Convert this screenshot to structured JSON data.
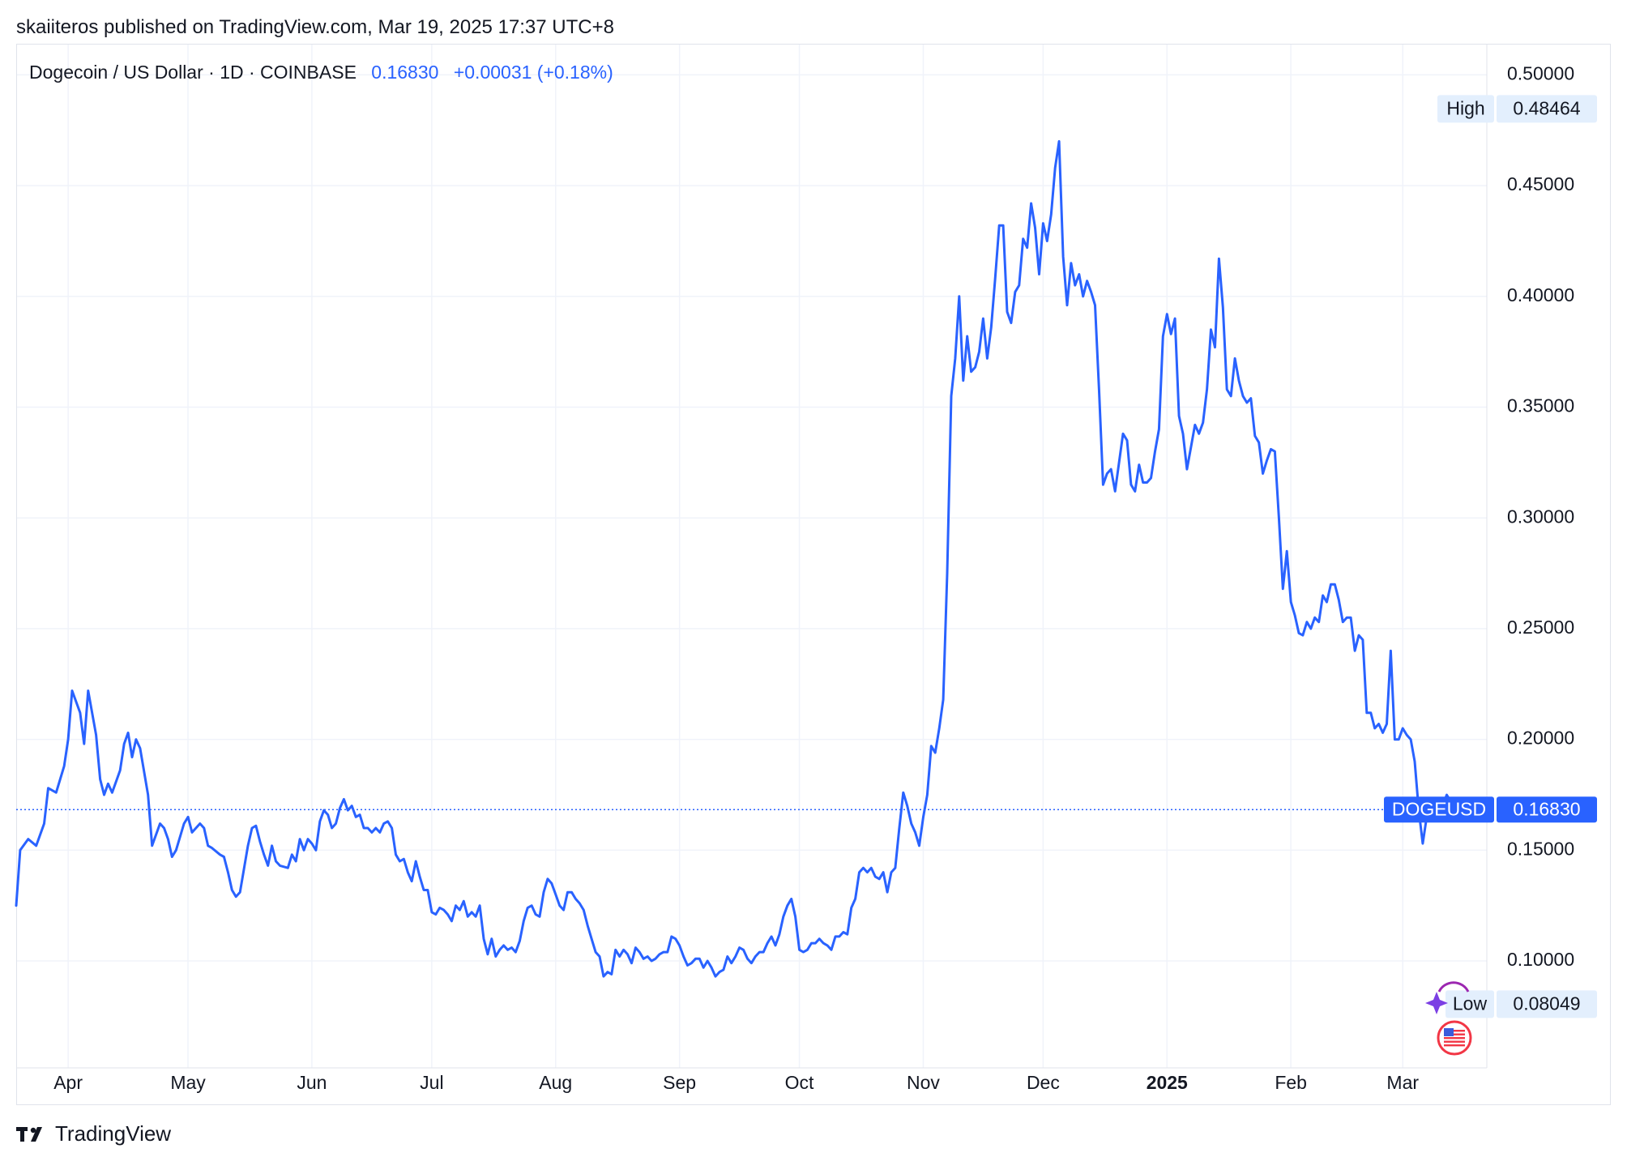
{
  "header": {
    "published_line": "skaiiteros published on TradingView.com, Mar 19, 2025 17:37 UTC+8"
  },
  "legend": {
    "symbol": "Dogecoin / US Dollar · 1D · COINBASE",
    "last": "0.16830",
    "change": "+0.00031 (+0.18%)"
  },
  "footer": {
    "brand": "TradingView"
  },
  "colors": {
    "line": "#2962ff",
    "grid": "#f0f3fa",
    "axis_text": "#131722",
    "label_bg": "#e3effd"
  },
  "chart_data": {
    "type": "line",
    "series": [
      {
        "name": "DOGEUSD"
      }
    ],
    "y_ticks": [
      "0.50000",
      "0.45000",
      "0.40000",
      "0.35000",
      "0.30000",
      "0.25000",
      "0.20000",
      "0.15000",
      "0.10000"
    ],
    "x_ticks": [
      "Apr",
      "May",
      "Jun",
      "Jul",
      "Aug",
      "Sep",
      "Oct",
      "Nov",
      "Dec",
      "2025",
      "Feb",
      "Mar"
    ],
    "high": {
      "label": "High",
      "value": "0.48464"
    },
    "low": {
      "label": "Low",
      "value": "0.08049"
    },
    "last_label": {
      "name": "DOGEUSD",
      "value": "0.16830"
    },
    "ylim": [
      0.06,
      0.52
    ],
    "x_range": [
      "2024-03-19",
      "2025-03-19"
    ],
    "points": [
      [
        "2024-03-19",
        0.125
      ],
      [
        "2024-03-20",
        0.15
      ],
      [
        "2024-03-22",
        0.155
      ],
      [
        "2024-03-24",
        0.152
      ],
      [
        "2024-03-26",
        0.162
      ],
      [
        "2024-03-27",
        0.178
      ],
      [
        "2024-03-29",
        0.176
      ],
      [
        "2024-03-31",
        0.188
      ],
      [
        "2024-04-01",
        0.2
      ],
      [
        "2024-04-02",
        0.222
      ],
      [
        "2024-04-04",
        0.212
      ],
      [
        "2024-04-05",
        0.198
      ],
      [
        "2024-04-06",
        0.222
      ],
      [
        "2024-04-08",
        0.202
      ],
      [
        "2024-04-09",
        0.182
      ],
      [
        "2024-04-10",
        0.175
      ],
      [
        "2024-04-11",
        0.18
      ],
      [
        "2024-04-12",
        0.176
      ],
      [
        "2024-04-14",
        0.186
      ],
      [
        "2024-04-15",
        0.198
      ],
      [
        "2024-04-16",
        0.203
      ],
      [
        "2024-04-17",
        0.192
      ],
      [
        "2024-04-18",
        0.2
      ],
      [
        "2024-04-19",
        0.196
      ],
      [
        "2024-04-21",
        0.175
      ],
      [
        "2024-04-22",
        0.152
      ],
      [
        "2024-04-24",
        0.162
      ],
      [
        "2024-04-25",
        0.16
      ],
      [
        "2024-04-26",
        0.155
      ],
      [
        "2024-04-27",
        0.147
      ],
      [
        "2024-04-28",
        0.15
      ],
      [
        "2024-04-30",
        0.162
      ],
      [
        "2024-05-01",
        0.165
      ],
      [
        "2024-05-02",
        0.158
      ],
      [
        "2024-05-04",
        0.162
      ],
      [
        "2024-05-05",
        0.16
      ],
      [
        "2024-05-06",
        0.152
      ],
      [
        "2024-05-07",
        0.151
      ],
      [
        "2024-05-09",
        0.148
      ],
      [
        "2024-05-10",
        0.147
      ],
      [
        "2024-05-11",
        0.14
      ],
      [
        "2024-05-12",
        0.132
      ],
      [
        "2024-05-13",
        0.129
      ],
      [
        "2024-05-14",
        0.131
      ],
      [
        "2024-05-16",
        0.152
      ],
      [
        "2024-05-17",
        0.16
      ],
      [
        "2024-05-18",
        0.161
      ],
      [
        "2024-05-19",
        0.154
      ],
      [
        "2024-05-20",
        0.148
      ],
      [
        "2024-05-21",
        0.143
      ],
      [
        "2024-05-22",
        0.152
      ],
      [
        "2024-05-23",
        0.145
      ],
      [
        "2024-05-24",
        0.143
      ],
      [
        "2024-05-26",
        0.142
      ],
      [
        "2024-05-27",
        0.148
      ],
      [
        "2024-05-28",
        0.145
      ],
      [
        "2024-05-29",
        0.155
      ],
      [
        "2024-05-30",
        0.15
      ],
      [
        "2024-05-31",
        0.155
      ],
      [
        "2024-06-01",
        0.153
      ],
      [
        "2024-06-02",
        0.15
      ],
      [
        "2024-06-03",
        0.163
      ],
      [
        "2024-06-04",
        0.168
      ],
      [
        "2024-06-05",
        0.166
      ],
      [
        "2024-06-06",
        0.16
      ],
      [
        "2024-06-07",
        0.162
      ],
      [
        "2024-06-08",
        0.169
      ],
      [
        "2024-06-09",
        0.173
      ],
      [
        "2024-06-10",
        0.168
      ],
      [
        "2024-06-11",
        0.17
      ],
      [
        "2024-06-12",
        0.165
      ],
      [
        "2024-06-13",
        0.166
      ],
      [
        "2024-06-14",
        0.16
      ],
      [
        "2024-06-15",
        0.16
      ],
      [
        "2024-06-16",
        0.158
      ],
      [
        "2024-06-17",
        0.16
      ],
      [
        "2024-06-18",
        0.158
      ],
      [
        "2024-06-19",
        0.162
      ],
      [
        "2024-06-20",
        0.163
      ],
      [
        "2024-06-21",
        0.16
      ],
      [
        "2024-06-22",
        0.148
      ],
      [
        "2024-06-23",
        0.145
      ],
      [
        "2024-06-24",
        0.146
      ],
      [
        "2024-06-25",
        0.14
      ],
      [
        "2024-06-26",
        0.136
      ],
      [
        "2024-06-27",
        0.145
      ],
      [
        "2024-06-28",
        0.138
      ],
      [
        "2024-06-29",
        0.132
      ],
      [
        "2024-06-30",
        0.132
      ],
      [
        "2024-07-01",
        0.122
      ],
      [
        "2024-07-02",
        0.121
      ],
      [
        "2024-07-03",
        0.124
      ],
      [
        "2024-07-04",
        0.123
      ],
      [
        "2024-07-05",
        0.121
      ],
      [
        "2024-07-06",
        0.118
      ],
      [
        "2024-07-07",
        0.125
      ],
      [
        "2024-07-08",
        0.123
      ],
      [
        "2024-07-09",
        0.127
      ],
      [
        "2024-07-10",
        0.12
      ],
      [
        "2024-07-11",
        0.122
      ],
      [
        "2024-07-12",
        0.12
      ],
      [
        "2024-07-13",
        0.125
      ],
      [
        "2024-07-14",
        0.11
      ],
      [
        "2024-07-15",
        0.103
      ],
      [
        "2024-07-16",
        0.11
      ],
      [
        "2024-07-17",
        0.102
      ],
      [
        "2024-07-18",
        0.105
      ],
      [
        "2024-07-19",
        0.107
      ],
      [
        "2024-07-20",
        0.105
      ],
      [
        "2024-07-21",
        0.106
      ],
      [
        "2024-07-22",
        0.104
      ],
      [
        "2024-07-23",
        0.109
      ],
      [
        "2024-07-24",
        0.118
      ],
      [
        "2024-07-25",
        0.124
      ],
      [
        "2024-07-26",
        0.125
      ],
      [
        "2024-07-27",
        0.121
      ],
      [
        "2024-07-28",
        0.12
      ],
      [
        "2024-07-29",
        0.131
      ],
      [
        "2024-07-30",
        0.137
      ],
      [
        "2024-07-31",
        0.135
      ],
      [
        "2024-08-01",
        0.13
      ],
      [
        "2024-08-02",
        0.125
      ],
      [
        "2024-08-03",
        0.123
      ],
      [
        "2024-08-04",
        0.131
      ],
      [
        "2024-08-05",
        0.131
      ],
      [
        "2024-08-06",
        0.128
      ],
      [
        "2024-08-07",
        0.126
      ],
      [
        "2024-08-08",
        0.123
      ],
      [
        "2024-08-09",
        0.116
      ],
      [
        "2024-08-10",
        0.11
      ],
      [
        "2024-08-11",
        0.104
      ],
      [
        "2024-08-12",
        0.102
      ],
      [
        "2024-08-13",
        0.093
      ],
      [
        "2024-08-14",
        0.095
      ],
      [
        "2024-08-15",
        0.094
      ],
      [
        "2024-08-16",
        0.105
      ],
      [
        "2024-08-17",
        0.102
      ],
      [
        "2024-08-18",
        0.105
      ],
      [
        "2024-08-19",
        0.103
      ],
      [
        "2024-08-20",
        0.099
      ],
      [
        "2024-08-21",
        0.106
      ],
      [
        "2024-08-22",
        0.104
      ],
      [
        "2024-08-23",
        0.101
      ],
      [
        "2024-08-24",
        0.102
      ],
      [
        "2024-08-25",
        0.1
      ],
      [
        "2024-08-26",
        0.101
      ],
      [
        "2024-08-27",
        0.103
      ],
      [
        "2024-08-28",
        0.104
      ],
      [
        "2024-08-29",
        0.104
      ],
      [
        "2024-08-30",
        0.111
      ],
      [
        "2024-08-31",
        0.11
      ],
      [
        "2024-09-01",
        0.107
      ],
      [
        "2024-09-02",
        0.102
      ],
      [
        "2024-09-03",
        0.098
      ],
      [
        "2024-09-04",
        0.099
      ],
      [
        "2024-09-05",
        0.101
      ],
      [
        "2024-09-06",
        0.101
      ],
      [
        "2024-09-07",
        0.097
      ],
      [
        "2024-09-08",
        0.1
      ],
      [
        "2024-09-09",
        0.097
      ],
      [
        "2024-09-10",
        0.093
      ],
      [
        "2024-09-11",
        0.095
      ],
      [
        "2024-09-12",
        0.096
      ],
      [
        "2024-09-13",
        0.102
      ],
      [
        "2024-09-14",
        0.099
      ],
      [
        "2024-09-15",
        0.102
      ],
      [
        "2024-09-16",
        0.106
      ],
      [
        "2024-09-17",
        0.105
      ],
      [
        "2024-09-18",
        0.101
      ],
      [
        "2024-09-19",
        0.099
      ],
      [
        "2024-09-20",
        0.102
      ],
      [
        "2024-09-21",
        0.104
      ],
      [
        "2024-09-22",
        0.104
      ],
      [
        "2024-09-23",
        0.108
      ],
      [
        "2024-09-24",
        0.111
      ],
      [
        "2024-09-25",
        0.107
      ],
      [
        "2024-09-26",
        0.112
      ],
      [
        "2024-09-27",
        0.12
      ],
      [
        "2024-09-28",
        0.125
      ],
      [
        "2024-09-29",
        0.128
      ],
      [
        "2024-09-30",
        0.12
      ],
      [
        "2024-10-01",
        0.105
      ],
      [
        "2024-10-02",
        0.104
      ],
      [
        "2024-10-03",
        0.105
      ],
      [
        "2024-10-04",
        0.108
      ],
      [
        "2024-10-05",
        0.108
      ],
      [
        "2024-10-06",
        0.11
      ],
      [
        "2024-10-07",
        0.108
      ],
      [
        "2024-10-08",
        0.107
      ],
      [
        "2024-10-09",
        0.105
      ],
      [
        "2024-10-10",
        0.111
      ],
      [
        "2024-10-11",
        0.111
      ],
      [
        "2024-10-12",
        0.113
      ],
      [
        "2024-10-13",
        0.112
      ],
      [
        "2024-10-14",
        0.124
      ],
      [
        "2024-10-15",
        0.128
      ],
      [
        "2024-10-16",
        0.14
      ],
      [
        "2024-10-17",
        0.142
      ],
      [
        "2024-10-18",
        0.14
      ],
      [
        "2024-10-19",
        0.142
      ],
      [
        "2024-10-20",
        0.138
      ],
      [
        "2024-10-21",
        0.137
      ],
      [
        "2024-10-22",
        0.14
      ],
      [
        "2024-10-23",
        0.131
      ],
      [
        "2024-10-24",
        0.14
      ],
      [
        "2024-10-25",
        0.142
      ],
      [
        "2024-10-26",
        0.16
      ],
      [
        "2024-10-27",
        0.176
      ],
      [
        "2024-10-28",
        0.17
      ],
      [
        "2024-10-29",
        0.162
      ],
      [
        "2024-10-30",
        0.158
      ],
      [
        "2024-10-31",
        0.152
      ],
      [
        "2024-11-01",
        0.165
      ],
      [
        "2024-11-02",
        0.175
      ],
      [
        "2024-11-03",
        0.197
      ],
      [
        "2024-11-04",
        0.194
      ],
      [
        "2024-11-05",
        0.205
      ],
      [
        "2024-11-06",
        0.218
      ],
      [
        "2024-11-07",
        0.275
      ],
      [
        "2024-11-08",
        0.355
      ],
      [
        "2024-11-09",
        0.372
      ],
      [
        "2024-11-10",
        0.4
      ],
      [
        "2024-11-11",
        0.362
      ],
      [
        "2024-11-12",
        0.382
      ],
      [
        "2024-11-13",
        0.366
      ],
      [
        "2024-11-14",
        0.368
      ],
      [
        "2024-11-15",
        0.375
      ],
      [
        "2024-11-16",
        0.39
      ],
      [
        "2024-11-17",
        0.372
      ],
      [
        "2024-11-18",
        0.386
      ],
      [
        "2024-11-19",
        0.408
      ],
      [
        "2024-11-20",
        0.432
      ],
      [
        "2024-11-21",
        0.432
      ],
      [
        "2024-11-22",
        0.393
      ],
      [
        "2024-11-23",
        0.388
      ],
      [
        "2024-11-24",
        0.402
      ],
      [
        "2024-11-25",
        0.405
      ],
      [
        "2024-11-26",
        0.426
      ],
      [
        "2024-11-27",
        0.422
      ],
      [
        "2024-11-28",
        0.442
      ],
      [
        "2024-11-29",
        0.431
      ],
      [
        "2024-11-30",
        0.41
      ],
      [
        "2024-12-01",
        0.433
      ],
      [
        "2024-12-02",
        0.425
      ],
      [
        "2024-12-03",
        0.437
      ],
      [
        "2024-12-04",
        0.458
      ],
      [
        "2024-12-05",
        0.47
      ],
      [
        "2024-12-06",
        0.418
      ],
      [
        "2024-12-07",
        0.396
      ],
      [
        "2024-12-08",
        0.415
      ],
      [
        "2024-12-09",
        0.405
      ],
      [
        "2024-12-10",
        0.41
      ],
      [
        "2024-12-11",
        0.4
      ],
      [
        "2024-12-12",
        0.407
      ],
      [
        "2024-12-13",
        0.402
      ],
      [
        "2024-12-14",
        0.396
      ],
      [
        "2024-12-15",
        0.358
      ],
      [
        "2024-12-16",
        0.315
      ],
      [
        "2024-12-17",
        0.32
      ],
      [
        "2024-12-18",
        0.322
      ],
      [
        "2024-12-19",
        0.312
      ],
      [
        "2024-12-20",
        0.325
      ],
      [
        "2024-12-21",
        0.338
      ],
      [
        "2024-12-22",
        0.335
      ],
      [
        "2024-12-23",
        0.315
      ],
      [
        "2024-12-24",
        0.312
      ],
      [
        "2024-12-25",
        0.324
      ],
      [
        "2024-12-26",
        0.316
      ],
      [
        "2024-12-27",
        0.316
      ],
      [
        "2024-12-28",
        0.318
      ],
      [
        "2024-12-29",
        0.33
      ],
      [
        "2024-12-30",
        0.34
      ],
      [
        "2024-12-31",
        0.382
      ],
      [
        "2025-01-01",
        0.392
      ],
      [
        "2025-01-02",
        0.383
      ],
      [
        "2025-01-03",
        0.39
      ],
      [
        "2025-01-04",
        0.346
      ],
      [
        "2025-01-05",
        0.338
      ],
      [
        "2025-01-06",
        0.322
      ],
      [
        "2025-01-07",
        0.332
      ],
      [
        "2025-01-08",
        0.342
      ],
      [
        "2025-01-09",
        0.338
      ],
      [
        "2025-01-10",
        0.343
      ],
      [
        "2025-01-11",
        0.358
      ],
      [
        "2025-01-12",
        0.385
      ],
      [
        "2025-01-13",
        0.377
      ],
      [
        "2025-01-14",
        0.417
      ],
      [
        "2025-01-15",
        0.395
      ],
      [
        "2025-01-16",
        0.358
      ],
      [
        "2025-01-17",
        0.355
      ],
      [
        "2025-01-18",
        0.372
      ],
      [
        "2025-01-19",
        0.362
      ],
      [
        "2025-01-20",
        0.355
      ],
      [
        "2025-01-21",
        0.352
      ],
      [
        "2025-01-22",
        0.354
      ],
      [
        "2025-01-23",
        0.337
      ],
      [
        "2025-01-24",
        0.334
      ],
      [
        "2025-01-25",
        0.32
      ],
      [
        "2025-01-26",
        0.326
      ],
      [
        "2025-01-27",
        0.331
      ],
      [
        "2025-01-28",
        0.33
      ],
      [
        "2025-01-29",
        0.3
      ],
      [
        "2025-01-30",
        0.268
      ],
      [
        "2025-01-31",
        0.285
      ],
      [
        "2025-02-01",
        0.262
      ],
      [
        "2025-02-02",
        0.256
      ],
      [
        "2025-02-03",
        0.248
      ],
      [
        "2025-02-04",
        0.247
      ],
      [
        "2025-02-05",
        0.253
      ],
      [
        "2025-02-06",
        0.25
      ],
      [
        "2025-02-07",
        0.255
      ],
      [
        "2025-02-08",
        0.253
      ],
      [
        "2025-02-09",
        0.265
      ],
      [
        "2025-02-10",
        0.262
      ],
      [
        "2025-02-11",
        0.27
      ],
      [
        "2025-02-12",
        0.27
      ],
      [
        "2025-02-13",
        0.263
      ],
      [
        "2025-02-14",
        0.253
      ],
      [
        "2025-02-15",
        0.255
      ],
      [
        "2025-02-16",
        0.255
      ],
      [
        "2025-02-17",
        0.24
      ],
      [
        "2025-02-18",
        0.247
      ],
      [
        "2025-02-19",
        0.245
      ],
      [
        "2025-02-20",
        0.212
      ],
      [
        "2025-02-21",
        0.212
      ],
      [
        "2025-02-22",
        0.205
      ],
      [
        "2025-02-23",
        0.207
      ],
      [
        "2025-02-24",
        0.203
      ],
      [
        "2025-02-25",
        0.207
      ],
      [
        "2025-02-26",
        0.24
      ],
      [
        "2025-02-27",
        0.2
      ],
      [
        "2025-02-28",
        0.2
      ],
      [
        "2025-03-01",
        0.205
      ],
      [
        "2025-03-02",
        0.202
      ],
      [
        "2025-03-03",
        0.2
      ],
      [
        "2025-03-04",
        0.19
      ],
      [
        "2025-03-05",
        0.168
      ],
      [
        "2025-03-06",
        0.153
      ],
      [
        "2025-03-07",
        0.165
      ],
      [
        "2025-03-08",
        0.168
      ],
      [
        "2025-03-09",
        0.17
      ],
      [
        "2025-03-10",
        0.165
      ],
      [
        "2025-03-11",
        0.17
      ],
      [
        "2025-03-12",
        0.175
      ],
      [
        "2025-03-13",
        0.172
      ],
      [
        "2025-03-14",
        0.169
      ]
    ]
  }
}
